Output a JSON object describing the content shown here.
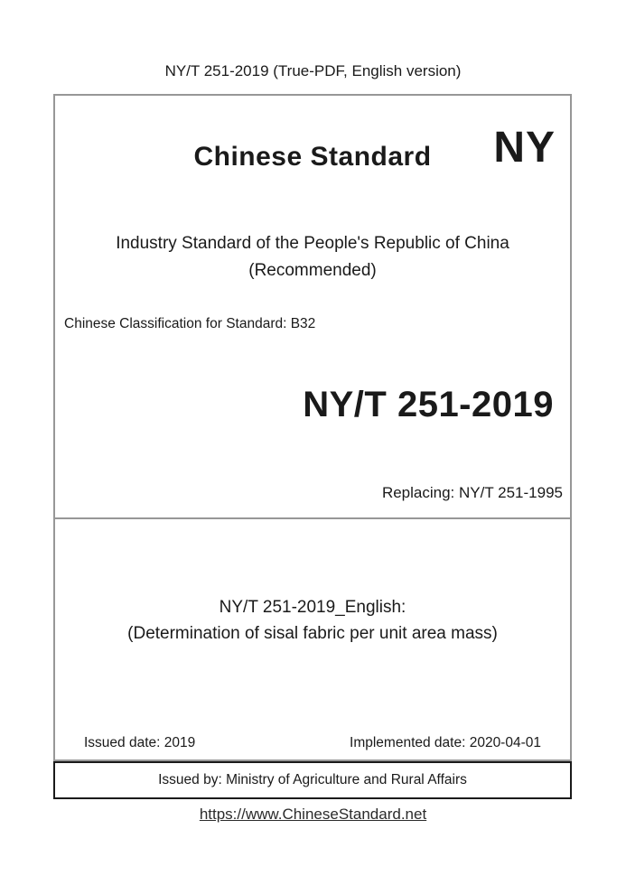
{
  "page": {
    "header": "NY/T 251-2019 (True-PDF, English version)",
    "footer_link": "https://www.ChineseStandard.net"
  },
  "cover": {
    "brand_title": "Chinese Standard",
    "brand_code": "NY",
    "standard_type_line1": "Industry Standard of the People's Republic of China",
    "standard_type_line2": "(Recommended)",
    "classification": "Chinese Classification for Standard: B32",
    "standard_number": "NY/T 251-2019",
    "replacing": "Replacing: NY/T 251-1995",
    "english_title_line1": "NY/T 251-2019_English:",
    "english_title_line2": "(Determination of sisal fabric per unit area mass)",
    "issued_date": "Issued date: 2019",
    "implemented_date": "Implemented date: 2020-04-01",
    "issued_by": "Issued by: Ministry of Agriculture and Rural Affairs"
  },
  "colors": {
    "text": "#1a1a1a",
    "border_gray": "#979797",
    "border_black": "#1a1a1a",
    "link": "#2b2b2b"
  }
}
